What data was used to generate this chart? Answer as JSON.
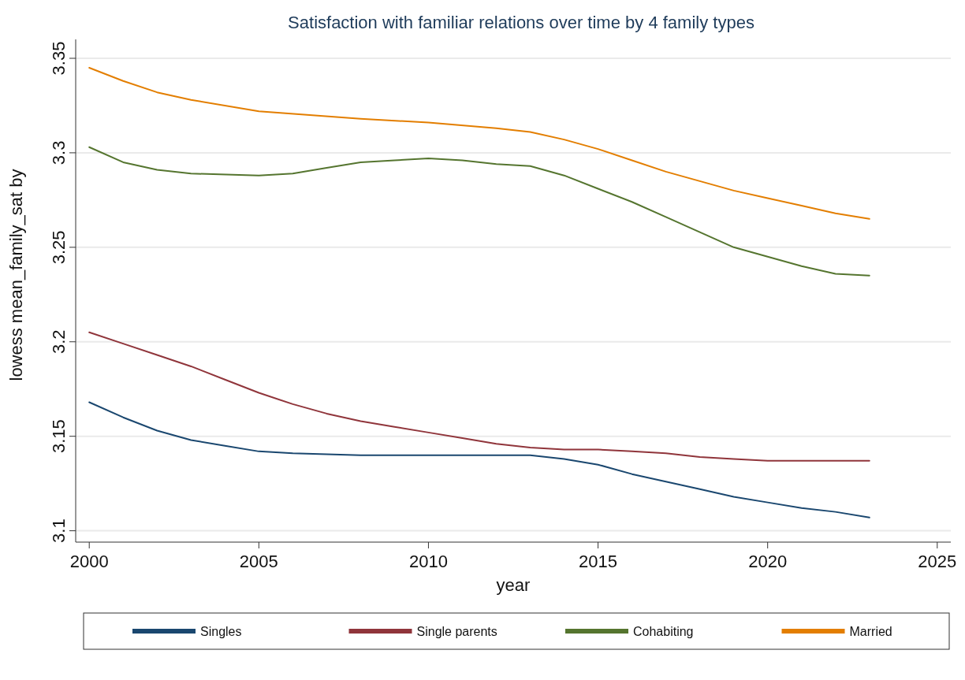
{
  "chart_data": {
    "type": "line",
    "title": "Satisfaction with familiar relations over time by 4 family types",
    "xlabel": "year",
    "ylabel": "lowess mean_family_sat by",
    "xlim": [
      1999.6,
      2025.4
    ],
    "xticks": [
      2000,
      2005,
      2010,
      2015,
      2020,
      2025
    ],
    "ylim": [
      3.094,
      3.36
    ],
    "yticks": [
      3.1,
      3.15,
      3.2,
      3.25,
      3.3,
      3.35
    ],
    "grid": "y",
    "legend": "bottom",
    "marker": "none",
    "line_style": "solid",
    "series": [
      {
        "name": "Singles",
        "color": "#1a476f",
        "x": [
          2000,
          2001,
          2002,
          2003,
          2004,
          2005,
          2006,
          2008,
          2010,
          2012,
          2013,
          2014,
          2015,
          2016,
          2017,
          2018,
          2019,
          2020,
          2021,
          2022,
          2023
        ],
        "values": [
          3.168,
          3.16,
          3.153,
          3.148,
          3.145,
          3.142,
          3.141,
          3.14,
          3.14,
          3.14,
          3.14,
          3.138,
          3.135,
          3.13,
          3.126,
          3.122,
          3.118,
          3.115,
          3.112,
          3.11,
          3.107
        ]
      },
      {
        "name": "Single parents",
        "color": "#90353b",
        "x": [
          2000,
          2001,
          2002,
          2003,
          2004,
          2005,
          2006,
          2007,
          2008,
          2009,
          2010,
          2011,
          2012,
          2013,
          2014,
          2015,
          2016,
          2017,
          2018,
          2019,
          2020,
          2021,
          2022,
          2023
        ],
        "values": [
          3.205,
          3.199,
          3.193,
          3.187,
          3.18,
          3.173,
          3.167,
          3.162,
          3.158,
          3.155,
          3.152,
          3.149,
          3.146,
          3.144,
          3.143,
          3.143,
          3.142,
          3.141,
          3.139,
          3.138,
          3.137,
          3.137,
          3.137,
          3.137
        ]
      },
      {
        "name": "Cohabiting",
        "color": "#55752f",
        "x": [
          2000,
          2001,
          2002,
          2003,
          2005,
          2006,
          2007,
          2008,
          2009,
          2010,
          2011,
          2012,
          2013,
          2014,
          2015,
          2016,
          2017,
          2018,
          2019,
          2020,
          2021,
          2022,
          2023
        ],
        "values": [
          3.303,
          3.295,
          3.291,
          3.289,
          3.288,
          3.289,
          3.292,
          3.295,
          3.296,
          3.297,
          3.296,
          3.294,
          3.293,
          3.288,
          3.281,
          3.274,
          3.266,
          3.258,
          3.25,
          3.245,
          3.24,
          3.236,
          3.235
        ]
      },
      {
        "name": "Married",
        "color": "#e37e00",
        "x": [
          2000,
          2001,
          2002,
          2003,
          2005,
          2008,
          2010,
          2012,
          2013,
          2014,
          2015,
          2016,
          2017,
          2018,
          2019,
          2020,
          2021,
          2022,
          2023
        ],
        "values": [
          3.345,
          3.338,
          3.332,
          3.328,
          3.322,
          3.318,
          3.316,
          3.313,
          3.311,
          3.307,
          3.302,
          3.296,
          3.29,
          3.285,
          3.28,
          3.276,
          3.272,
          3.268,
          3.265
        ]
      }
    ]
  }
}
